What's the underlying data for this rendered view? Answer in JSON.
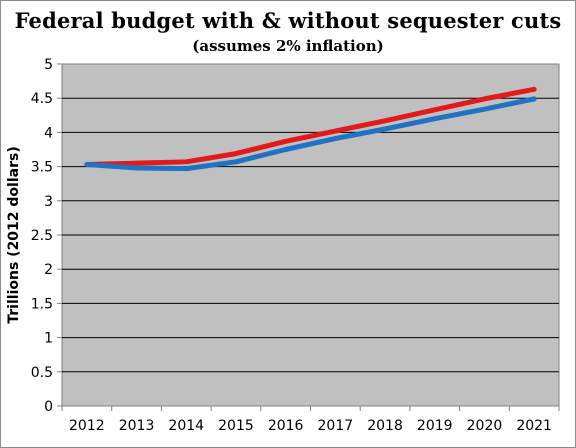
{
  "chart_data": {
    "type": "line",
    "title": "Federal budget with & without sequester cuts",
    "subtitle": "(assumes 2% inflation)",
    "xlabel": "",
    "ylabel": "Trillions  (2012 dollars)",
    "x": [
      "2012",
      "2013",
      "2014",
      "2015",
      "2016",
      "2017",
      "2018",
      "2019",
      "2020",
      "2021"
    ],
    "ylim": [
      0,
      5
    ],
    "yticks": [
      "0",
      "0.5",
      "1",
      "1.5",
      "2",
      "2.5",
      "3",
      "3.5",
      "4",
      "4.5",
      "5"
    ],
    "grid": true,
    "legend": "none",
    "plot_background": "#c0c0c0",
    "series": [
      {
        "color": "#e31a1c",
        "values": [
          3.53,
          3.55,
          3.57,
          3.69,
          3.87,
          4.02,
          4.17,
          4.33,
          4.49,
          4.63
        ]
      },
      {
        "color": "#1f72c4",
        "values": [
          3.53,
          3.48,
          3.47,
          3.57,
          3.75,
          3.91,
          4.05,
          4.2,
          4.34,
          4.49
        ]
      }
    ]
  }
}
